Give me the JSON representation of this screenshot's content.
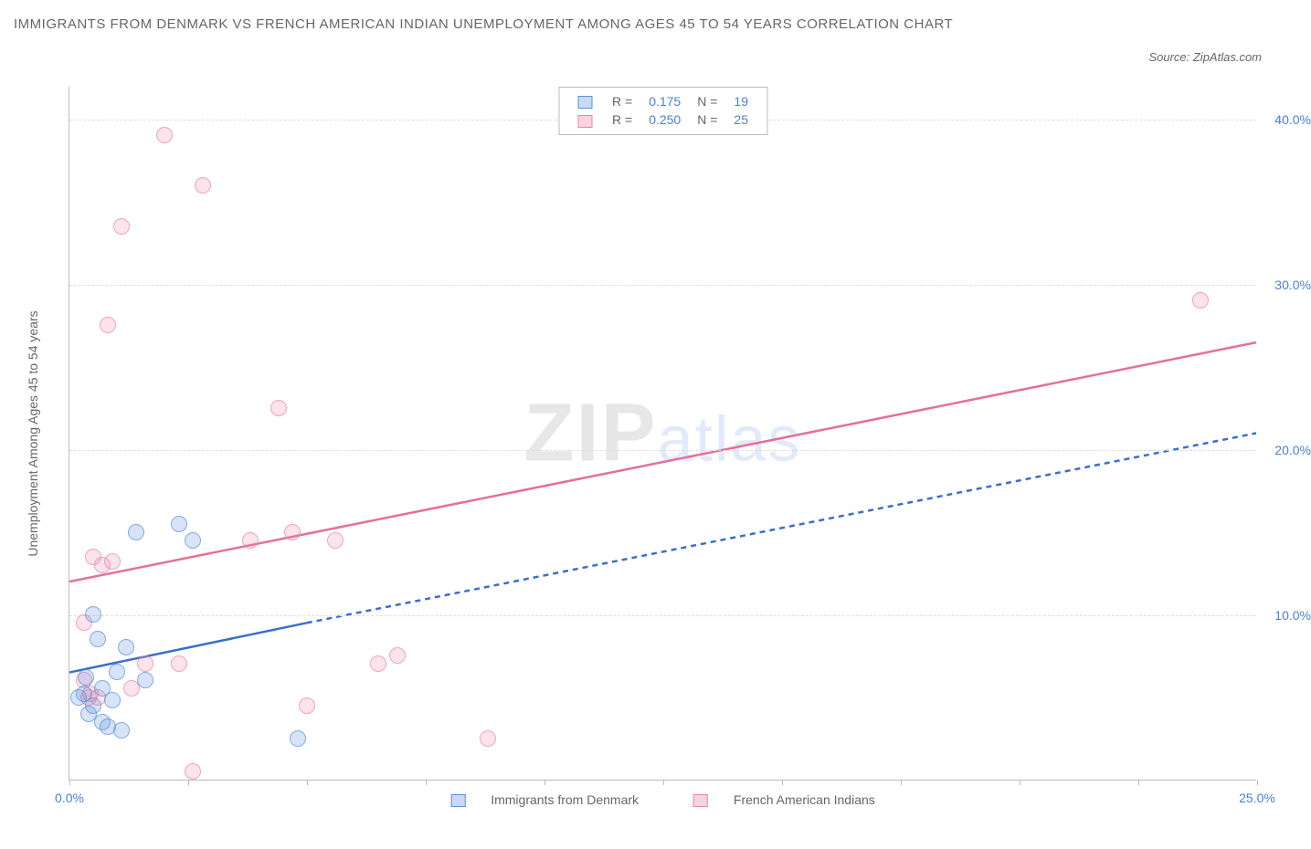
{
  "title": "IMMIGRANTS FROM DENMARK VS FRENCH AMERICAN INDIAN UNEMPLOYMENT AMONG AGES 45 TO 54 YEARS CORRELATION CHART",
  "source_label": "Source: ZipAtlas.com",
  "ylabel": "Unemployment Among Ages 45 to 54 years",
  "watermark": {
    "a": "ZIP",
    "b": "atlas"
  },
  "axes": {
    "xmin": 0,
    "xmax": 25,
    "ymin": 0,
    "ymax": 42,
    "xticks": [
      0,
      2.5,
      5,
      7.5,
      10,
      12.5,
      15,
      17.5,
      20,
      22.5,
      25
    ],
    "xlabels": {
      "0": "0.0%",
      "25": "25.0%"
    },
    "yticks": [
      10,
      20,
      30,
      40
    ],
    "ylabels": {
      "10": "10.0%",
      "20": "20.0%",
      "30": "30.0%",
      "40": "40.0%"
    }
  },
  "legend_top": {
    "r_label": "R =",
    "n_label": "N =",
    "series": [
      {
        "color": "blue",
        "r": "0.175",
        "n": "19"
      },
      {
        "color": "pink",
        "r": "0.250",
        "n": "25"
      }
    ]
  },
  "legend_bottom": {
    "blue": "Immigrants from Denmark",
    "pink": "French American Indians"
  },
  "series_blue": {
    "color_fill": "rgba(100,150,230,0.35)",
    "color_stroke": "#5a8fd8",
    "trend": {
      "x1": 0,
      "y1": 6.5,
      "x2_solid": 5,
      "y2_solid": 9.5,
      "x2": 25,
      "y2": 21,
      "dash_after_solid": true
    },
    "points": [
      {
        "x": 0.2,
        "y": 5.0
      },
      {
        "x": 0.3,
        "y": 5.2
      },
      {
        "x": 0.35,
        "y": 6.2
      },
      {
        "x": 0.4,
        "y": 4.0
      },
      {
        "x": 0.5,
        "y": 10.0
      },
      {
        "x": 0.6,
        "y": 8.5
      },
      {
        "x": 0.7,
        "y": 3.5
      },
      {
        "x": 0.7,
        "y": 5.5
      },
      {
        "x": 0.8,
        "y": 3.2
      },
      {
        "x": 0.9,
        "y": 4.8
      },
      {
        "x": 1.0,
        "y": 6.5
      },
      {
        "x": 1.1,
        "y": 3.0
      },
      {
        "x": 1.2,
        "y": 8.0
      },
      {
        "x": 1.4,
        "y": 15.0
      },
      {
        "x": 1.6,
        "y": 6.0
      },
      {
        "x": 2.3,
        "y": 15.5
      },
      {
        "x": 2.6,
        "y": 14.5
      },
      {
        "x": 4.8,
        "y": 2.5
      },
      {
        "x": 0.5,
        "y": 4.5
      }
    ]
  },
  "series_pink": {
    "color_fill": "rgba(240,130,170,0.30)",
    "color_stroke": "#e886aa",
    "trend": {
      "x1": 0,
      "y1": 12.0,
      "x2": 25,
      "y2": 26.5,
      "dash_after_solid": false
    },
    "points": [
      {
        "x": 0.3,
        "y": 6.0
      },
      {
        "x": 0.3,
        "y": 9.5
      },
      {
        "x": 0.4,
        "y": 5.0
      },
      {
        "x": 0.45,
        "y": 5.2
      },
      {
        "x": 0.5,
        "y": 13.5
      },
      {
        "x": 0.6,
        "y": 5.0
      },
      {
        "x": 0.7,
        "y": 13.0
      },
      {
        "x": 0.8,
        "y": 27.5
      },
      {
        "x": 1.1,
        "y": 33.5
      },
      {
        "x": 1.3,
        "y": 5.5
      },
      {
        "x": 1.6,
        "y": 7.0
      },
      {
        "x": 2.0,
        "y": 39.0
      },
      {
        "x": 2.3,
        "y": 7.0
      },
      {
        "x": 2.6,
        "y": 0.5
      },
      {
        "x": 2.8,
        "y": 36.0
      },
      {
        "x": 3.8,
        "y": 14.5
      },
      {
        "x": 4.4,
        "y": 22.5
      },
      {
        "x": 4.7,
        "y": 15.0
      },
      {
        "x": 5.0,
        "y": 4.5
      },
      {
        "x": 5.6,
        "y": 14.5
      },
      {
        "x": 6.5,
        "y": 7.0
      },
      {
        "x": 6.9,
        "y": 7.5
      },
      {
        "x": 8.8,
        "y": 2.5
      },
      {
        "x": 23.8,
        "y": 29.0
      },
      {
        "x": 0.9,
        "y": 13.2
      }
    ]
  }
}
